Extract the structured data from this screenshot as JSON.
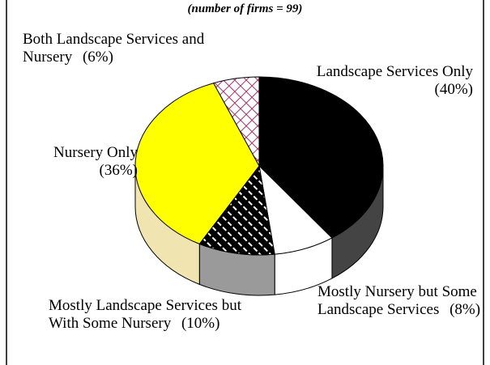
{
  "chart_data": {
    "type": "pie3d",
    "subtitle": "(number of firms = 99)",
    "categories": [
      "Landscape Services Only",
      "Mostly Nursery but Some Landscape Services",
      "Mostly Landscape Services but With Some Nursery",
      "Nursery Only",
      "Both Landscape Services and Nursery"
    ],
    "values": [
      40,
      8,
      10,
      36,
      6
    ],
    "value_labels": [
      "(40%)",
      "(8%)",
      "(10%)",
      "(36%)",
      "(6%)"
    ],
    "colors": [
      "#000000",
      "#ffffff",
      "#000000",
      "#ffff00",
      "#ffffff"
    ]
  }
}
